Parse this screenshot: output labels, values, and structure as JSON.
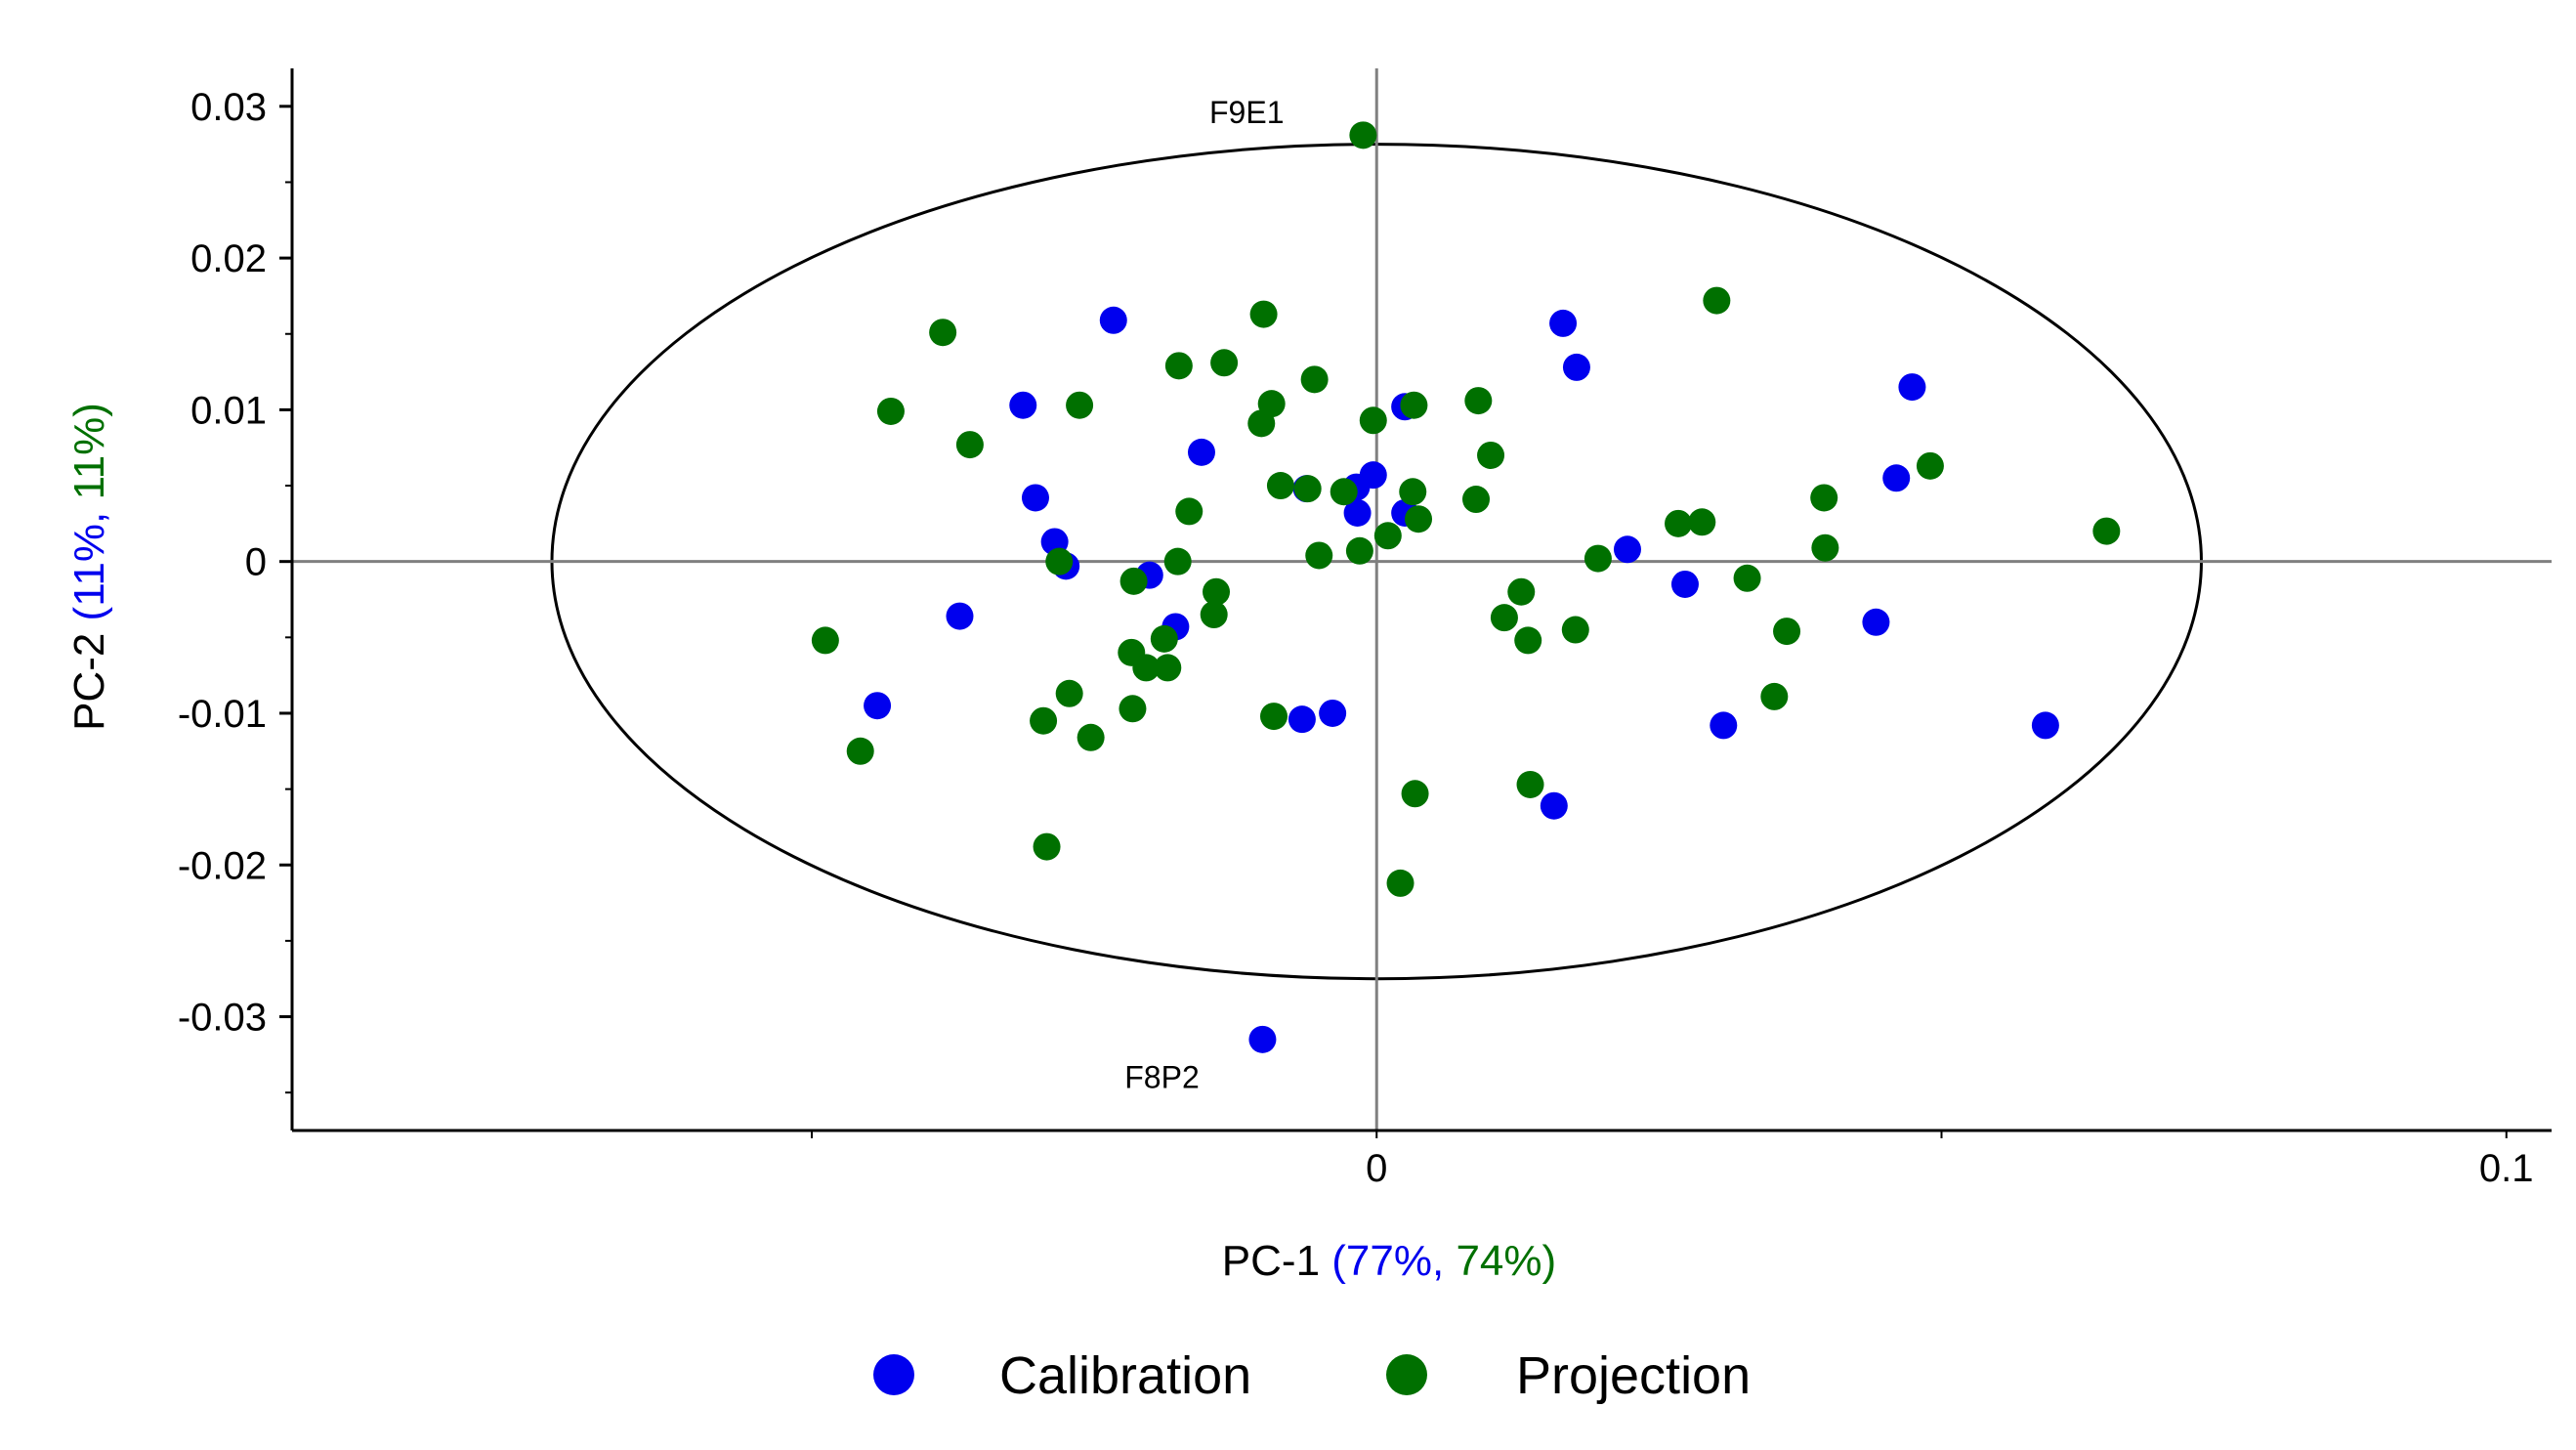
{
  "chart_data": {
    "type": "scatter",
    "title": "",
    "xlabel": {
      "prefix": "PC-1 ",
      "calibration_pct": "(77%,",
      "projection_pct": " 74%)"
    },
    "ylabel": {
      "prefix": "PC-2 ",
      "calibration_pct": "(11%,",
      "projection_pct": " 11%)"
    },
    "xlim": [
      -0.096,
      0.104
    ],
    "ylim": [
      -0.0375,
      0.0325
    ],
    "x_ticks": [
      {
        "value": -0.05,
        "label": ""
      },
      {
        "value": 0,
        "label": "0"
      },
      {
        "value": 0.05,
        "label": ""
      },
      {
        "value": 0.1,
        "label": "0.1"
      }
    ],
    "y_ticks": [
      {
        "value": 0.03,
        "label": "0.03"
      },
      {
        "value": 0.02,
        "label": "0.02"
      },
      {
        "value": 0.01,
        "label": "0.01"
      },
      {
        "value": 0,
        "label": "0"
      },
      {
        "value": -0.01,
        "label": "-0.01"
      },
      {
        "value": -0.02,
        "label": "-0.02"
      },
      {
        "value": -0.03,
        "label": "-0.03"
      }
    ],
    "ellipse": {
      "center": [
        0,
        0
      ],
      "rx": 0.073,
      "ry": 0.0275
    },
    "reference_lines": {
      "x": 0,
      "y": 0
    },
    "grid": false,
    "legend_position": "bottom",
    "annotations": [
      {
        "text": "F9E1",
        "x": -0.0115,
        "y": 0.0289
      },
      {
        "text": "F8P2",
        "x": -0.019,
        "y": -0.0347
      }
    ],
    "series": [
      {
        "name": "Calibration",
        "color": "#0000ee",
        "points": [
          [
            -0.0233,
            0.0159
          ],
          [
            -0.0313,
            0.0103
          ],
          [
            -0.0302,
            0.0042
          ],
          [
            -0.0285,
            0.0013
          ],
          [
            -0.0275,
            -0.0003
          ],
          [
            -0.0201,
            -0.0009
          ],
          [
            -0.0178,
            -0.0043
          ],
          [
            -0.0155,
            0.0072
          ],
          [
            -0.0369,
            -0.0036
          ],
          [
            -0.0442,
            -0.0095
          ],
          [
            -0.0101,
            -0.0315
          ],
          [
            -0.0066,
            -0.0104
          ],
          [
            -0.0039,
            -0.01
          ],
          [
            -0.0062,
            0.0048
          ],
          [
            -0.0018,
            0.0049
          ],
          [
            -0.0017,
            0.0032
          ],
          [
            -0.0003,
            0.0057
          ],
          [
            0.0025,
            0.0102
          ],
          [
            0.0025,
            0.0032
          ],
          [
            0.0165,
            0.0157
          ],
          [
            0.0177,
            0.0128
          ],
          [
            0.0222,
            0.0008
          ],
          [
            0.0273,
            -0.0015
          ],
          [
            0.0307,
            -0.0108
          ],
          [
            0.0157,
            -0.0161
          ],
          [
            0.0442,
            -0.004
          ],
          [
            0.046,
            0.0055
          ],
          [
            0.0474,
            0.0115
          ],
          [
            0.0592,
            -0.0108
          ]
        ]
      },
      {
        "name": "Projection",
        "color": "#007000",
        "points": [
          [
            -0.0012,
            0.0281
          ],
          [
            -0.0384,
            0.0151
          ],
          [
            -0.043,
            0.0099
          ],
          [
            -0.036,
            0.0077
          ],
          [
            -0.0263,
            0.0103
          ],
          [
            -0.0175,
            0.0129
          ],
          [
            -0.0135,
            0.0131
          ],
          [
            -0.01,
            0.0163
          ],
          [
            -0.0102,
            0.0091
          ],
          [
            -0.0093,
            0.0104
          ],
          [
            -0.0055,
            0.012
          ],
          [
            -0.0085,
            0.005
          ],
          [
            -0.0061,
            0.0048
          ],
          [
            -0.0029,
            0.0046
          ],
          [
            -0.0051,
            0.0004
          ],
          [
            -0.0015,
            0.0007
          ],
          [
            -0.0003,
            0.0093
          ],
          [
            0.0033,
            0.0103
          ],
          [
            0.001,
            0.0017
          ],
          [
            0.0032,
            0.0046
          ],
          [
            0.0037,
            0.0028
          ],
          [
            0.0088,
            0.0041
          ],
          [
            0.009,
            0.0106
          ],
          [
            0.0101,
            0.007
          ],
          [
            -0.0166,
            0.0033
          ],
          [
            -0.0176,
            0.0
          ],
          [
            -0.0281,
            0.0
          ],
          [
            -0.0215,
            -0.0013
          ],
          [
            -0.0142,
            -0.002
          ],
          [
            -0.0144,
            -0.0035
          ],
          [
            -0.0188,
            -0.0051
          ],
          [
            -0.0217,
            -0.006
          ],
          [
            -0.0204,
            -0.007
          ],
          [
            -0.0185,
            -0.007
          ],
          [
            -0.0216,
            -0.0097
          ],
          [
            -0.0272,
            -0.0087
          ],
          [
            -0.0295,
            -0.0105
          ],
          [
            -0.0253,
            -0.0116
          ],
          [
            -0.0488,
            -0.0052
          ],
          [
            -0.0457,
            -0.0125
          ],
          [
            -0.0292,
            -0.0188
          ],
          [
            -0.0091,
            -0.0102
          ],
          [
            0.0021,
            -0.0212
          ],
          [
            0.0034,
            -0.0153
          ],
          [
            0.0136,
            -0.0147
          ],
          [
            0.0128,
            -0.002
          ],
          [
            0.0113,
            -0.0037
          ],
          [
            0.0134,
            -0.0052
          ],
          [
            0.0176,
            -0.0045
          ],
          [
            0.0196,
            0.0002
          ],
          [
            0.0267,
            0.0025
          ],
          [
            0.0288,
            0.0026
          ],
          [
            0.0301,
            0.0172
          ],
          [
            0.0328,
            -0.0011
          ],
          [
            0.0352,
            -0.0089
          ],
          [
            0.0363,
            -0.0046
          ],
          [
            0.0396,
            0.0042
          ],
          [
            0.0397,
            0.0009
          ],
          [
            0.049,
            0.0063
          ],
          [
            0.0646,
            0.002
          ]
        ]
      }
    ]
  }
}
